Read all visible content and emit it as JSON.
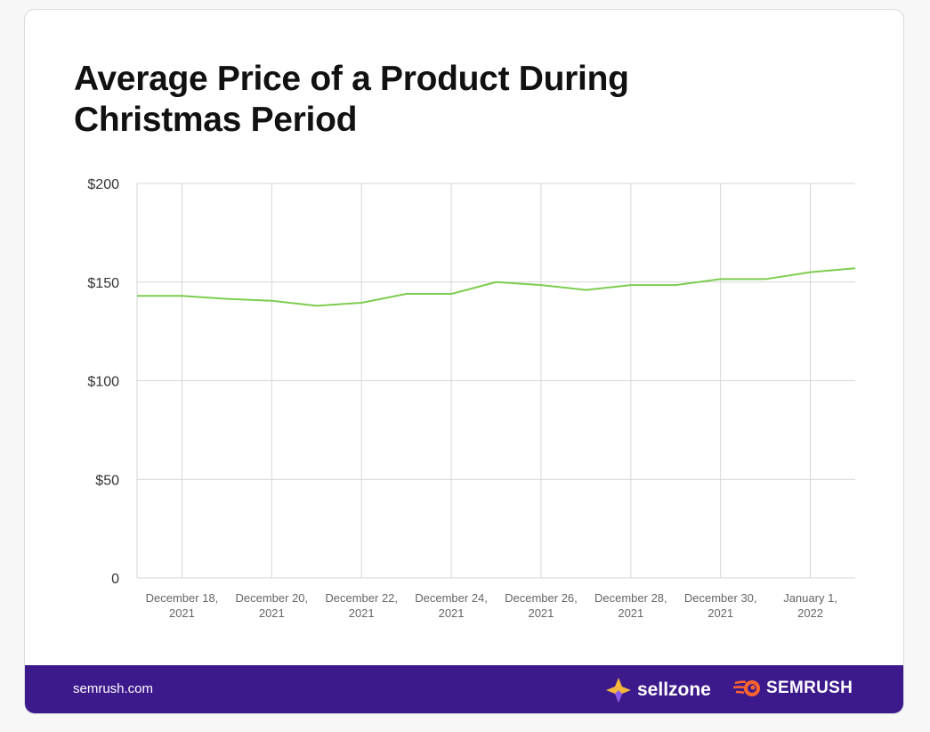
{
  "chart_data": {
    "type": "line",
    "title": "Average Price of a Product During Christmas Period",
    "xlabel": "",
    "ylabel": "",
    "x": [
      "2021-12-17",
      "2021-12-18",
      "2021-12-19",
      "2021-12-20",
      "2021-12-21",
      "2021-12-22",
      "2021-12-23",
      "2021-12-24",
      "2021-12-25",
      "2021-12-26",
      "2021-12-27",
      "2021-12-28",
      "2021-12-29",
      "2021-12-30",
      "2021-12-31",
      "2022-01-01",
      "2022-01-02"
    ],
    "series": [
      {
        "values": [
          143,
          143,
          141.5,
          140.5,
          138,
          139.5,
          144,
          144,
          150,
          148.5,
          146,
          148.5,
          148.5,
          151.5,
          151.5,
          155,
          157
        ],
        "color": "#7dcd4f"
      }
    ],
    "ylim": [
      0,
      200
    ],
    "y_ticks": [
      {
        "v": 200,
        "label": "$200"
      },
      {
        "v": 150,
        "label": "$150"
      },
      {
        "v": 100,
        "label": "$100"
      },
      {
        "v": 50,
        "label": "$50"
      },
      {
        "v": 0,
        "label": "0"
      }
    ],
    "x_ticks": [
      {
        "index": 1,
        "line1": "December 18,",
        "line2": "2021"
      },
      {
        "index": 3,
        "line1": "December 20,",
        "line2": "2021"
      },
      {
        "index": 5,
        "line1": "December 22,",
        "line2": "2021"
      },
      {
        "index": 7,
        "line1": "December 24,",
        "line2": "2021"
      },
      {
        "index": 9,
        "line1": "December 26,",
        "line2": "2021"
      },
      {
        "index": 11,
        "line1": "December 28,",
        "line2": "2021"
      },
      {
        "index": 13,
        "line1": "December 30,",
        "line2": "2021"
      },
      {
        "index": 15,
        "line1": "January 1,",
        "line2": "2022"
      }
    ],
    "grid": true,
    "legend": "none"
  },
  "footer": {
    "site": "semrush.com",
    "sellzone": "sellzone",
    "semrush": "SEMRUSH",
    "bg_color": "#3d1a8c"
  }
}
